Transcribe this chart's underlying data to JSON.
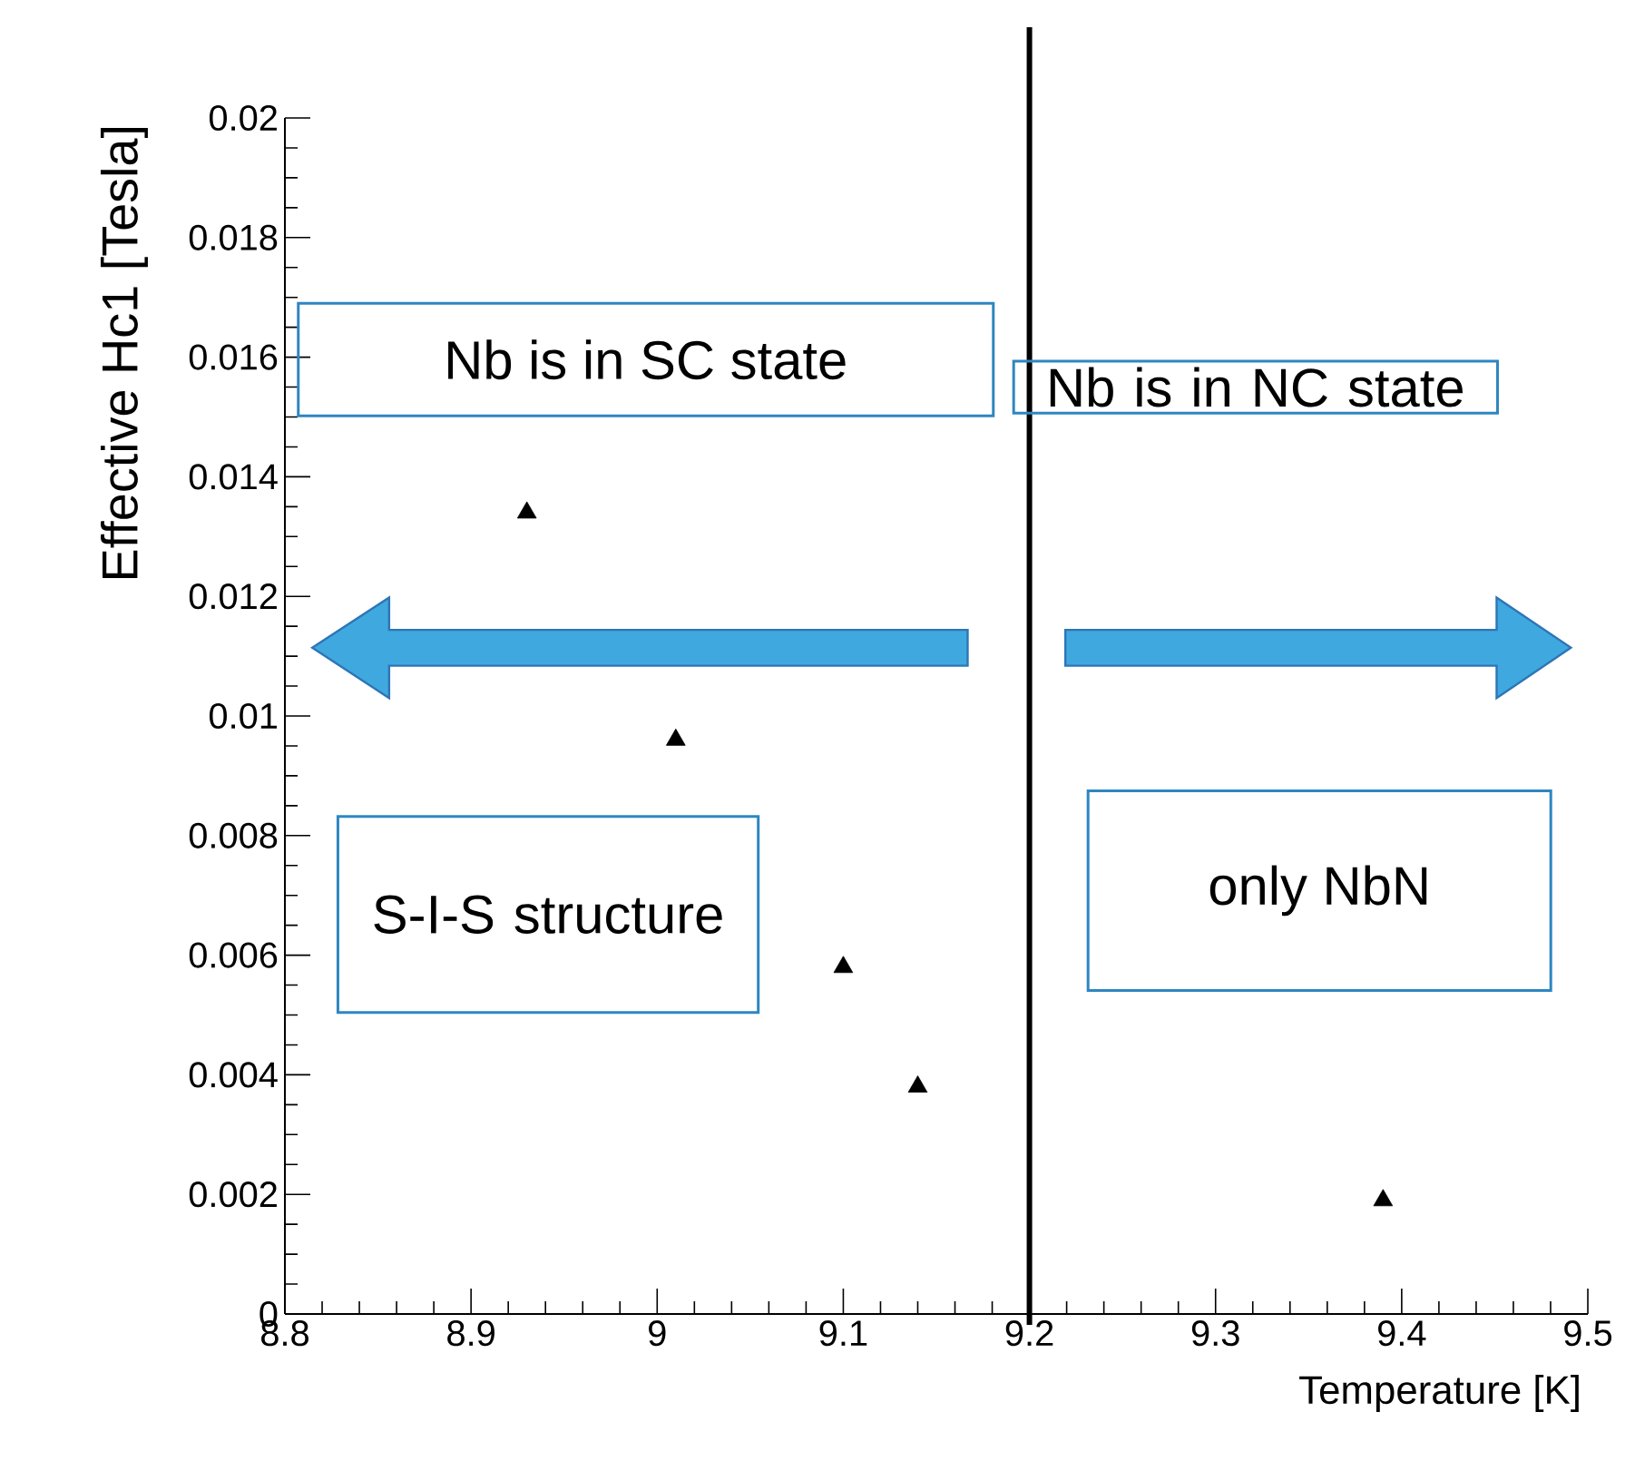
{
  "chart_data": {
    "type": "scatter",
    "xlabel": "Temperature [K]",
    "ylabel": "Effective Hc1  [Tesla]",
    "x": [
      8.93,
      9.01,
      9.1,
      9.14,
      9.39
    ],
    "values": [
      0.0134,
      0.0096,
      0.0058,
      0.0038,
      0.0019
    ],
    "color": "#000000",
    "marker": "triangle",
    "xlim": [
      8.8,
      9.5
    ],
    "xticks": [
      8.8,
      8.9,
      9,
      9.1,
      9.2,
      9.3,
      9.4,
      9.5
    ],
    "ylim": [
      0,
      0.02
    ],
    "yticks": [
      0,
      0.002,
      0.004,
      0.006,
      0.008,
      0.01,
      0.012,
      0.014,
      0.016,
      0.018,
      0.02
    ],
    "ref_lines": [
      {
        "axis": "x",
        "value": 9.2,
        "color": "#000000"
      }
    ],
    "annotations": [
      "Nb is in SC state",
      "Nb is in NC state",
      "S-I-S structure",
      "only NbN"
    ]
  }
}
